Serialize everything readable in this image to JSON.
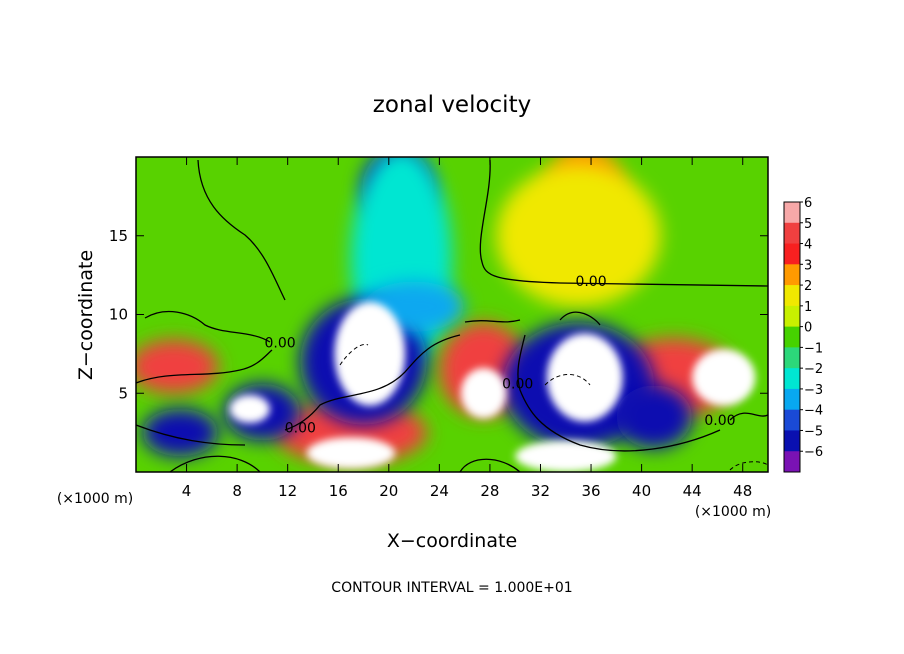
{
  "chart_data": {
    "type": "heatmap",
    "title": "zonal velocity",
    "xlabel": "X−coordinate",
    "ylabel": "Z−coordinate",
    "x_unit_label": "(×1000 m)",
    "footer": "CONTOUR INTERVAL = 1.000E+01",
    "xlim": [
      0,
      50
    ],
    "ylim": [
      0,
      20
    ],
    "x_ticks": [
      4,
      8,
      12,
      16,
      20,
      24,
      28,
      32,
      36,
      40,
      44,
      48
    ],
    "y_ticks": [
      5,
      10,
      15
    ],
    "colorbar": {
      "labels": [
        "6",
        "5",
        "4",
        "3",
        "2",
        "1",
        "0",
        "−1",
        "−2",
        "−3",
        "−4",
        "−5",
        "−6"
      ],
      "colors": [
        "#f7a8a8",
        "#f04040",
        "#f82020",
        "#ff9a00",
        "#f0e800",
        "#c8f000",
        "#46d200",
        "#2cd87a",
        "#00e6d2",
        "#08a8f0",
        "#1a4ad6",
        "#0a10b0",
        "#7a12b4"
      ]
    },
    "contour_labels": [
      {
        "text": "0.00",
        "x": 36,
        "y": 11.8
      },
      {
        "text": "0.00",
        "x": 11.4,
        "y": 7.9
      },
      {
        "text": "0.00",
        "x": 13,
        "y": 2.5
      },
      {
        "text": "0.00",
        "x": 30.2,
        "y": 5.3
      },
      {
        "text": "0.00",
        "x": 46.2,
        "y": 3
      }
    ],
    "field_regions": [
      {
        "value": 3.5,
        "x": 35.5,
        "y": 17.5,
        "rx": 3.2,
        "ry": 3.3
      },
      {
        "value": 2.2,
        "x": 35,
        "y": 15,
        "rx": 6.5,
        "ry": 4.5
      },
      {
        "value": -4.5,
        "x": 20.7,
        "y": 18,
        "rx": 2.8,
        "ry": 2.5
      },
      {
        "value": -2,
        "x": 21,
        "y": 13.5,
        "rx": 4,
        "ry": 7
      },
      {
        "value": 5,
        "x": 3,
        "y": 6.7,
        "rx": 3.5,
        "ry": 1.7
      },
      {
        "value": 5,
        "x": 27.5,
        "y": 6.5,
        "rx": 3.5,
        "ry": 3
      },
      {
        "value": 5,
        "x": 42.5,
        "y": 6,
        "rx": 5,
        "ry": 2.5
      },
      {
        "value": 5,
        "x": 17,
        "y": 2.5,
        "rx": 6,
        "ry": 2
      },
      {
        "value": -4.5,
        "x": 35,
        "y": 5.5,
        "rx": 6,
        "ry": 4
      },
      {
        "value": -4.5,
        "x": 18,
        "y": 7,
        "rx": 5,
        "ry": 4
      },
      {
        "value": -4.5,
        "x": 10,
        "y": 3.8,
        "rx": 3,
        "ry": 1.8
      },
      {
        "value": -4.5,
        "x": 3.5,
        "y": 2.5,
        "rx": 3,
        "ry": 1.5
      },
      {
        "value": -4.5,
        "x": 41,
        "y": 3.5,
        "rx": 3,
        "ry": 2
      },
      {
        "value": -3,
        "x": 22,
        "y": 10.5,
        "rx": 4,
        "ry": 1.6
      },
      {
        "value": 6,
        "x": 18.5,
        "y": 7.5,
        "rx": 2.8,
        "ry": 3.3
      },
      {
        "value": 6,
        "x": 35.5,
        "y": 6,
        "rx": 3,
        "ry": 2.8
      },
      {
        "value": 6,
        "x": 46.5,
        "y": 6,
        "rx": 2.5,
        "ry": 1.8
      },
      {
        "value": 6,
        "x": 27.5,
        "y": 5,
        "rx": 1.8,
        "ry": 1.6
      },
      {
        "value": 6,
        "x": 9,
        "y": 4,
        "rx": 1.6,
        "ry": 0.9
      },
      {
        "value": 6,
        "x": 17,
        "y": 1.2,
        "rx": 3.5,
        "ry": 1
      },
      {
        "value": 6,
        "x": 34,
        "y": 1,
        "rx": 4,
        "ry": 1
      }
    ]
  }
}
